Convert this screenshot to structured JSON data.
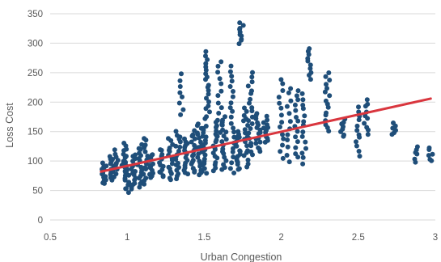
{
  "colors": {
    "background": "#ffffff",
    "gridline": "#d9d9d9",
    "axis_text": "#595959",
    "points": "#1f4e79",
    "trendline": "#d9363e"
  },
  "chart_data": {
    "type": "scatter",
    "title": "",
    "xlabel": "Urban Congestion",
    "ylabel": "Loss Cost",
    "xlim": [
      0.5,
      3
    ],
    "ylim": [
      0,
      350
    ],
    "x_ticks": [
      0.5,
      1,
      1.5,
      2,
      2.5,
      3
    ],
    "x_tick_labels": [
      "0.5",
      "1",
      "1.5",
      "2",
      "2.5",
      "3"
    ],
    "y_ticks": [
      0,
      50,
      100,
      150,
      200,
      250,
      300,
      350
    ],
    "y_tick_labels": [
      "0",
      "50",
      "100",
      "150",
      "200",
      "250",
      "300",
      "350"
    ],
    "grid": "horizontal",
    "legend": "none",
    "trendline": {
      "type": "linear",
      "x": [
        0.83,
        2.97
      ],
      "y": [
        82,
        206
      ]
    },
    "clusters": [
      {
        "x": 0.85,
        "y_min": 62,
        "y_max": 95,
        "n": 14
      },
      {
        "x": 0.9,
        "y_min": 68,
        "y_max": 108,
        "n": 14
      },
      {
        "x": 0.93,
        "y_min": 80,
        "y_max": 118,
        "n": 8
      },
      {
        "x": 0.98,
        "y_min": 76,
        "y_max": 130,
        "n": 14
      },
      {
        "x": 1.0,
        "y_min": 48,
        "y_max": 100,
        "n": 16
      },
      {
        "x": 1.04,
        "y_min": 52,
        "y_max": 112,
        "n": 16
      },
      {
        "x": 1.08,
        "y_min": 55,
        "y_max": 128,
        "n": 16
      },
      {
        "x": 1.12,
        "y_min": 60,
        "y_max": 140,
        "n": 14
      },
      {
        "x": 1.16,
        "y_min": 72,
        "y_max": 112,
        "n": 14
      },
      {
        "x": 1.22,
        "y_min": 72,
        "y_max": 120,
        "n": 14
      },
      {
        "x": 1.28,
        "y_min": 68,
        "y_max": 138,
        "n": 16
      },
      {
        "x": 1.33,
        "y_min": 70,
        "y_max": 150,
        "n": 18
      },
      {
        "x": 1.35,
        "y_min": 178,
        "y_max": 248,
        "n": 8
      },
      {
        "x": 1.38,
        "y_min": 78,
        "y_max": 138,
        "n": 16
      },
      {
        "x": 1.43,
        "y_min": 80,
        "y_max": 150,
        "n": 16
      },
      {
        "x": 1.47,
        "y_min": 75,
        "y_max": 165,
        "n": 18
      },
      {
        "x": 1.5,
        "y_min": 80,
        "y_max": 160,
        "n": 20
      },
      {
        "x": 1.52,
        "y_min": 170,
        "y_max": 285,
        "n": 20
      },
      {
        "x": 1.57,
        "y_min": 85,
        "y_max": 165,
        "n": 18
      },
      {
        "x": 1.6,
        "y_min": 140,
        "y_max": 270,
        "n": 14
      },
      {
        "x": 1.63,
        "y_min": 85,
        "y_max": 175,
        "n": 18
      },
      {
        "x": 1.68,
        "y_min": 80,
        "y_max": 260,
        "n": 22
      },
      {
        "x": 1.72,
        "y_min": 85,
        "y_max": 150,
        "n": 18
      },
      {
        "x": 1.74,
        "y_min": 300,
        "y_max": 335,
        "n": 10
      },
      {
        "x": 1.77,
        "y_min": 90,
        "y_max": 190,
        "n": 18
      },
      {
        "x": 1.8,
        "y_min": 110,
        "y_max": 250,
        "n": 20
      },
      {
        "x": 1.85,
        "y_min": 115,
        "y_max": 180,
        "n": 16
      },
      {
        "x": 1.9,
        "y_min": 130,
        "y_max": 175,
        "n": 12
      },
      {
        "x": 2.0,
        "y_min": 105,
        "y_max": 240,
        "n": 14
      },
      {
        "x": 2.05,
        "y_min": 100,
        "y_max": 225,
        "n": 12
      },
      {
        "x": 2.1,
        "y_min": 105,
        "y_max": 220,
        "n": 14
      },
      {
        "x": 2.15,
        "y_min": 95,
        "y_max": 215,
        "n": 14
      },
      {
        "x": 2.18,
        "y_min": 240,
        "y_max": 290,
        "n": 10
      },
      {
        "x": 2.3,
        "y_min": 150,
        "y_max": 250,
        "n": 16
      },
      {
        "x": 2.4,
        "y_min": 140,
        "y_max": 170,
        "n": 8
      },
      {
        "x": 2.5,
        "y_min": 110,
        "y_max": 190,
        "n": 12
      },
      {
        "x": 2.55,
        "y_min": 145,
        "y_max": 205,
        "n": 10
      },
      {
        "x": 2.73,
        "y_min": 145,
        "y_max": 165,
        "n": 6
      },
      {
        "x": 2.88,
        "y_min": 100,
        "y_max": 125,
        "n": 6
      },
      {
        "x": 2.97,
        "y_min": 100,
        "y_max": 122,
        "n": 6
      }
    ]
  }
}
